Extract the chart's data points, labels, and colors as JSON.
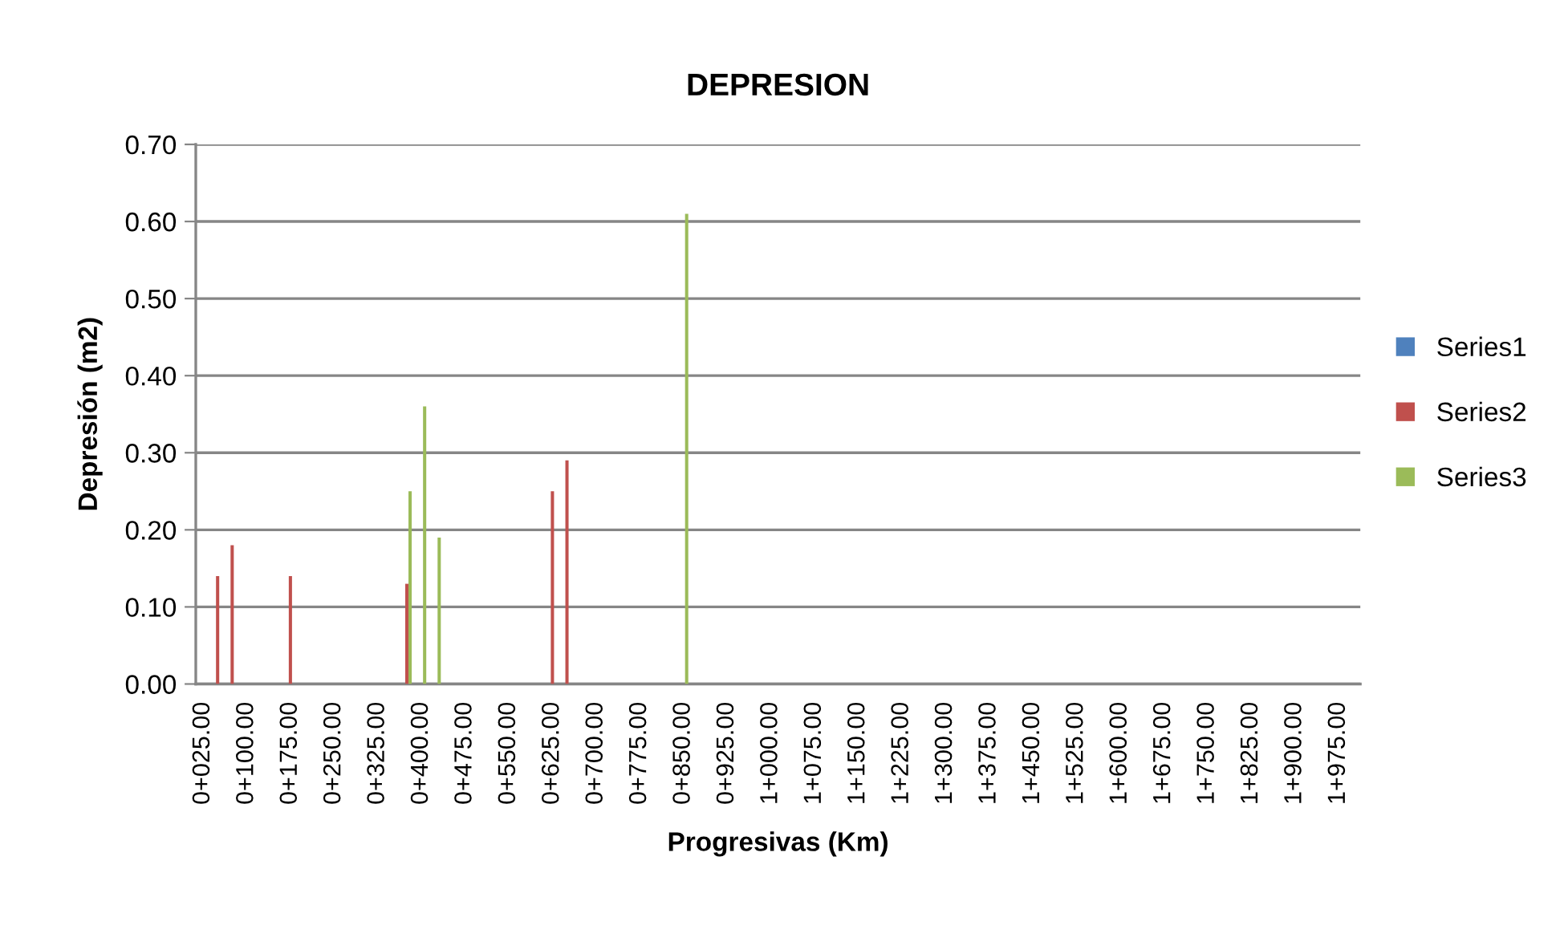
{
  "chart_data": {
    "type": "bar",
    "title": "DEPRESION",
    "xlabel": "Progresivas (Km)",
    "ylabel": "Depresión (m2)",
    "categories": [
      "0+025.00",
      null,
      null,
      "0+100.00",
      null,
      null,
      "0+175.00",
      null,
      null,
      "0+250.00",
      null,
      null,
      "0+325.00",
      null,
      null,
      "0+400.00",
      null,
      null,
      "0+475.00",
      null,
      null,
      "0+550.00",
      null,
      null,
      "0+625.00",
      null,
      null,
      "0+700.00",
      null,
      null,
      "0+775.00",
      null,
      null,
      "0+850.00",
      null,
      null,
      "0+925.00",
      null,
      null,
      "1+000.00",
      null,
      null,
      "1+075.00",
      null,
      null,
      "1+150.00",
      null,
      null,
      "1+225.00",
      null,
      null,
      "1+300.00",
      null,
      null,
      "1+375.00",
      null,
      null,
      "1+450.00",
      null,
      null,
      "1+525.00",
      null,
      null,
      "1+600.00",
      null,
      null,
      "1+675.00",
      null,
      null,
      "1+750.00",
      null,
      null,
      "1+825.00",
      null,
      null,
      "1+900.00",
      null,
      null,
      "1+975.00",
      null
    ],
    "series": [
      {
        "name": "Series1",
        "color": "#4f81bd",
        "values": [
          null,
          null,
          null,
          null,
          null,
          null,
          null,
          null,
          null,
          null,
          null,
          null,
          null,
          null,
          null,
          null,
          null,
          null,
          null,
          null,
          null,
          null,
          null,
          null,
          null,
          null,
          null,
          null,
          null,
          null,
          null,
          null,
          null,
          null,
          null,
          null,
          null,
          null,
          null,
          null,
          null,
          null,
          null,
          null,
          null,
          null,
          null,
          null,
          null,
          null,
          null,
          null,
          null,
          null,
          null,
          null,
          null,
          null,
          null,
          null,
          null,
          null,
          null,
          null,
          null,
          null,
          null,
          null,
          null,
          null,
          null,
          null,
          null,
          null,
          null,
          null,
          null,
          null,
          null,
          null
        ]
      },
      {
        "name": "Series2",
        "color": "#c0504d",
        "values": [
          null,
          0.14,
          0.18,
          null,
          null,
          null,
          0.14,
          null,
          null,
          null,
          null,
          null,
          null,
          null,
          0.13,
          null,
          null,
          null,
          null,
          null,
          null,
          null,
          null,
          null,
          0.25,
          0.29,
          null,
          null,
          null,
          null,
          null,
          null,
          null,
          null,
          null,
          null,
          null,
          null,
          null,
          null,
          null,
          null,
          null,
          null,
          null,
          null,
          null,
          null,
          null,
          null,
          null,
          null,
          null,
          null,
          null,
          null,
          null,
          null,
          null,
          null,
          null,
          null,
          null,
          null,
          null,
          null,
          null,
          null,
          null,
          null,
          null,
          null,
          null,
          null,
          null,
          null,
          null,
          null,
          null,
          null
        ]
      },
      {
        "name": "Series3",
        "color": "#9bbb59",
        "values": [
          null,
          null,
          null,
          null,
          null,
          null,
          null,
          null,
          null,
          null,
          null,
          null,
          null,
          null,
          0.25,
          0.36,
          0.19,
          null,
          null,
          null,
          null,
          null,
          null,
          null,
          null,
          null,
          null,
          null,
          null,
          null,
          null,
          null,
          null,
          0.61,
          null,
          null,
          null,
          null,
          null,
          null,
          null,
          null,
          null,
          null,
          null,
          null,
          null,
          null,
          null,
          null,
          null,
          null,
          null,
          null,
          null,
          null,
          null,
          null,
          null,
          null,
          null,
          null,
          null,
          null,
          null,
          null,
          null,
          null,
          null,
          null,
          null,
          null,
          null,
          null,
          null,
          null,
          null,
          null,
          null,
          null
        ]
      }
    ],
    "ylim": [
      0,
      0.7
    ],
    "yticks": [
      {
        "value": 0,
        "label": "0.00"
      },
      {
        "value": 0.1,
        "label": "0.10"
      },
      {
        "value": 0.2,
        "label": "0.20"
      },
      {
        "value": 0.3,
        "label": "0.30"
      },
      {
        "value": 0.4,
        "label": "0.40"
      },
      {
        "value": 0.5,
        "label": "0.50"
      },
      {
        "value": 0.6,
        "label": "0.60"
      },
      {
        "value": 0.7,
        "label": "0.70"
      }
    ],
    "grid": "y",
    "legend": "right"
  }
}
